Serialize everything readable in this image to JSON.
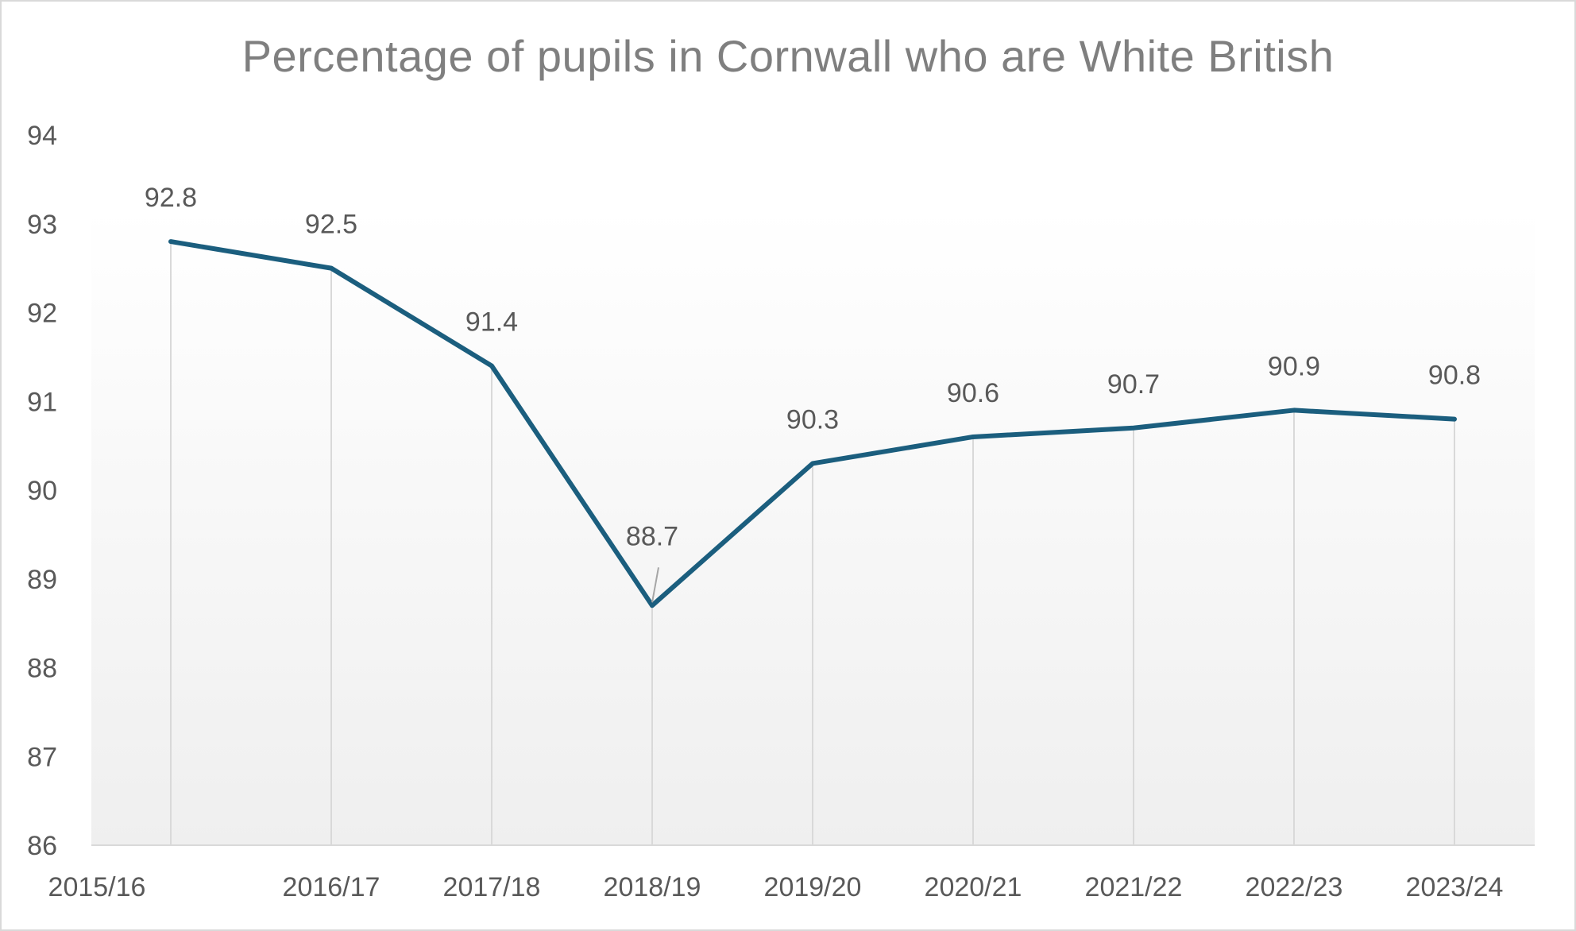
{
  "chart_data": {
    "type": "line",
    "title": "Percentage of pupils in Cornwall who are White British",
    "xlabel": "",
    "ylabel": "",
    "categories": [
      "2015/16",
      "2016/17",
      "2017/18",
      "2018/19",
      "2019/20",
      "2020/21",
      "2021/22",
      "2022/23",
      "2023/24"
    ],
    "series": [
      {
        "values": [
          92.8,
          92.5,
          91.4,
          88.7,
          90.3,
          90.6,
          90.7,
          90.9,
          90.8
        ],
        "color": "#1b5e7e"
      }
    ],
    "data_labels": [
      "92.8",
      "92.5",
      "91.4",
      "88.7",
      "90.3",
      "90.6",
      "90.7",
      "90.9",
      "90.8"
    ],
    "ylim": [
      86,
      94
    ],
    "yticks": [
      "86",
      "87",
      "88",
      "89",
      "90",
      "91",
      "92",
      "93",
      "94"
    ],
    "drop_lines": true,
    "legend": "none",
    "colors": {
      "line": "#1b5e7e",
      "drop_line": "#d9d9d9",
      "axis_text": "#595959",
      "title_text": "#7f7f7f",
      "plot_gradient_top": "#ffffff",
      "plot_gradient_bottom": "#efefef"
    }
  }
}
